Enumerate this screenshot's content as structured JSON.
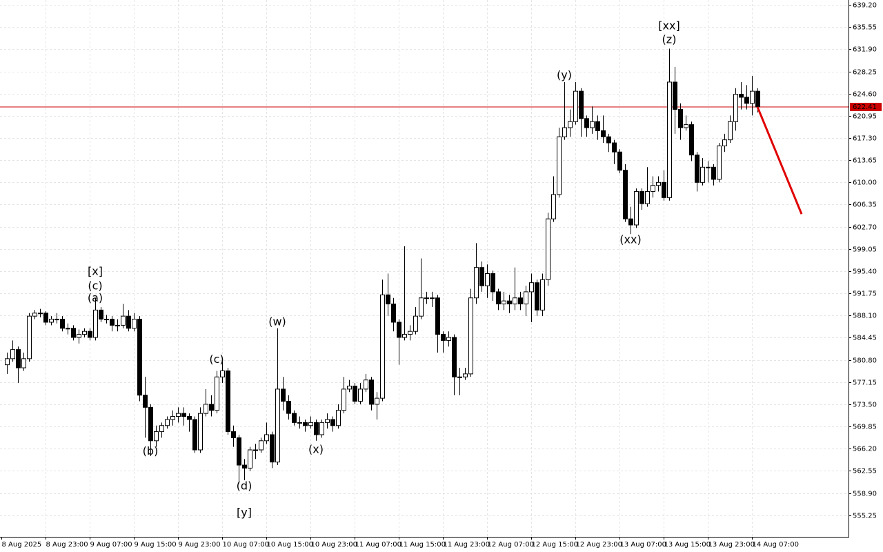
{
  "chart_data": {
    "type": "candlestick",
    "up_color": "#ffffff",
    "down_color": "#000000",
    "grid": true,
    "ylim": [
      551.7,
      640.0
    ],
    "yticks": [
      {
        "value": 639.2,
        "label": "639.20"
      },
      {
        "value": 635.55,
        "label": "635.55"
      },
      {
        "value": 631.9,
        "label": "631.90"
      },
      {
        "value": 628.25,
        "label": "628.25"
      },
      {
        "value": 624.6,
        "label": "624.60"
      },
      {
        "value": 620.95,
        "label": "620.95"
      },
      {
        "value": 617.3,
        "label": "617.30"
      },
      {
        "value": 613.65,
        "label": "613.65"
      },
      {
        "value": 610.0,
        "label": "610.00"
      },
      {
        "value": 606.35,
        "label": "606.35"
      },
      {
        "value": 602.7,
        "label": "602.70"
      },
      {
        "value": 599.05,
        "label": "599.05"
      },
      {
        "value": 595.4,
        "label": "595.40"
      },
      {
        "value": 591.75,
        "label": "591.75"
      },
      {
        "value": 588.1,
        "label": "588.10"
      },
      {
        "value": 584.45,
        "label": "584.45"
      },
      {
        "value": 580.8,
        "label": "580.80"
      },
      {
        "value": 577.15,
        "label": "577.15"
      },
      {
        "value": 573.5,
        "label": "573.50"
      },
      {
        "value": 569.85,
        "label": "569.85"
      },
      {
        "value": 566.2,
        "label": "566.20"
      },
      {
        "value": 562.55,
        "label": "562.55"
      },
      {
        "value": 558.9,
        "label": "558.90"
      },
      {
        "value": 555.25,
        "label": "555.25"
      }
    ],
    "xticks": [
      {
        "value": 0,
        "label": "8 Aug 2025"
      },
      {
        "value": 8,
        "label": "8 Aug 23:00"
      },
      {
        "value": 16,
        "label": "9 Aug 07:00"
      },
      {
        "value": 24,
        "label": "9 Aug 15:00"
      },
      {
        "value": 32,
        "label": "9 Aug 23:00"
      },
      {
        "value": 40,
        "label": "10 Aug 07:00"
      },
      {
        "value": 48,
        "label": "10 Aug 15:00"
      },
      {
        "value": 56,
        "label": "10 Aug 23:00"
      },
      {
        "value": 64,
        "label": "11 Aug 07:00"
      },
      {
        "value": 72,
        "label": "11 Aug 15:00"
      },
      {
        "value": 80,
        "label": "11 Aug 23:00"
      },
      {
        "value": 88,
        "label": "12 Aug 07:00"
      },
      {
        "value": 96,
        "label": "12 Aug 15:00"
      },
      {
        "value": 104,
        "label": "12 Aug 23:00"
      },
      {
        "value": 112,
        "label": "13 Aug 07:00"
      },
      {
        "value": 120,
        "label": "13 Aug 15:00"
      },
      {
        "value": 128,
        "label": "13 Aug 23:00"
      },
      {
        "value": 136,
        "label": "14 Aug 07:00"
      }
    ],
    "open": [
      580,
      581,
      582.5,
      579.5,
      581,
      588,
      588.5,
      588.5,
      587,
      587.5,
      587.5,
      586,
      586,
      584.5,
      585,
      585.5,
      584.5,
      589,
      587.5,
      587.5,
      586.5,
      586.5,
      588,
      586,
      587.5,
      575,
      573,
      567.5,
      569,
      570,
      571,
      571.5,
      572,
      571.5,
      571,
      566,
      572,
      573.5,
      572.5,
      578,
      579,
      569,
      568,
      563.5,
      563,
      566,
      566,
      567.5,
      568.5,
      564,
      576,
      574,
      572,
      570.5,
      570.5,
      570,
      570.5,
      568.5,
      570.5,
      571,
      570,
      572.5,
      576,
      576.5,
      574,
      576,
      577.5,
      573.5,
      574.5,
      591.5,
      590,
      587,
      584.5,
      585,
      585.5,
      588,
      591,
      591,
      591,
      585,
      584,
      584.5,
      578,
      578,
      578.5,
      591,
      596,
      593,
      595,
      592,
      590,
      590.5,
      590,
      591,
      590,
      592,
      593.5,
      589,
      594,
      604,
      608,
      617.5,
      619,
      620,
      625,
      620.5,
      619,
      620,
      618.5,
      617.5,
      616.5,
      615,
      612,
      604,
      603,
      608.5,
      606.5,
      608.5,
      609.5,
      610,
      607.5,
      626.5,
      622,
      619,
      619.5,
      614.5,
      610,
      612.5,
      612.5,
      610.5,
      616,
      617,
      620,
      624.5,
      624,
      623,
      625
    ],
    "high": [
      582,
      584,
      583,
      582,
      588.5,
      589,
      589.2,
      588.8,
      588,
      588.5,
      588,
      586.8,
      586.5,
      585.8,
      586,
      586,
      591,
      589.5,
      588.2,
      588,
      587.5,
      590,
      589,
      588.5,
      588,
      578,
      573.5,
      570,
      570.5,
      571.5,
      572.5,
      573,
      573,
      572,
      571.5,
      573,
      576,
      575,
      579,
      580.5,
      579.5,
      570,
      568.5,
      564.5,
      566.5,
      567,
      568,
      570.5,
      569,
      586,
      578,
      575,
      572.5,
      571.5,
      571,
      571.5,
      571,
      571,
      572,
      571.5,
      573.5,
      578,
      577.5,
      577,
      577,
      578.5,
      578,
      575.5,
      594,
      595,
      591,
      587.5,
      599.5,
      586.5,
      589.5,
      597.5,
      592,
      592,
      591.5,
      585.5,
      585.5,
      585,
      579.5,
      579.5,
      592.5,
      600,
      597,
      596.5,
      595.5,
      592.5,
      592,
      591.5,
      596,
      592,
      593,
      595,
      594,
      595,
      605,
      611,
      619,
      626.5,
      622,
      626.5,
      625.5,
      621,
      622.5,
      621,
      621,
      618,
      617,
      615.5,
      613,
      606,
      609,
      609,
      612.5,
      611,
      611,
      612,
      632,
      629,
      623,
      621,
      620,
      615,
      614,
      613.5,
      613,
      616.5,
      618,
      621,
      625.5,
      626.5,
      626,
      627.5,
      625.5
    ],
    "low": [
      578.5,
      580.5,
      577,
      579,
      580.5,
      587.5,
      587.8,
      586.5,
      586.5,
      586.8,
      585.5,
      585,
      584,
      583.5,
      584.5,
      584,
      584,
      587,
      586.8,
      585.5,
      585.5,
      586,
      585.5,
      585.5,
      574,
      568,
      565,
      566.5,
      568,
      569.5,
      570,
      570.5,
      570,
      569,
      565.5,
      565.5,
      571.5,
      571.5,
      572,
      577,
      568.5,
      566.5,
      560.5,
      561,
      562.5,
      564.5,
      565.5,
      567,
      563,
      563.5,
      572.5,
      571,
      570,
      569.5,
      569,
      569.5,
      567.5,
      568,
      569.5,
      569,
      569.5,
      572,
      575.5,
      573.5,
      573.5,
      575.5,
      572.5,
      571,
      574,
      588,
      585.5,
      580,
      584,
      584,
      585,
      587.5,
      590,
      589.5,
      582,
      582,
      583,
      575,
      575,
      577.5,
      578,
      590,
      592,
      591,
      590.5,
      589,
      589,
      588.5,
      589,
      589,
      588,
      587,
      588,
      588,
      593,
      603.5,
      607.5,
      617,
      617.5,
      619.5,
      617.5,
      617.5,
      618,
      617,
      616.5,
      615,
      613,
      611.5,
      603.5,
      601.5,
      602.5,
      605.5,
      606,
      607.5,
      608.5,
      607,
      607,
      618,
      617,
      618.5,
      613.5,
      608.5,
      609.5,
      610,
      609.5,
      610,
      615,
      616.5,
      618.5,
      622,
      622,
      621,
      621.5
    ],
    "close": [
      581,
      582.5,
      579.5,
      581,
      588,
      588.5,
      588.5,
      587,
      587.5,
      587.5,
      586,
      586,
      584.5,
      585,
      585.5,
      584.5,
      589,
      587.5,
      587.5,
      586.5,
      586.5,
      588,
      586,
      587.5,
      575,
      573,
      567.5,
      569,
      570,
      571,
      571.5,
      572,
      571.5,
      571,
      566,
      572,
      573.5,
      572.5,
      578,
      579,
      569,
      568,
      563.5,
      563,
      566,
      566,
      567.5,
      568.5,
      564,
      576,
      574,
      572,
      570.5,
      570.5,
      570,
      570.5,
      568.5,
      570.5,
      571,
      570,
      572.5,
      576,
      576.5,
      574,
      576,
      577.5,
      573.5,
      574.5,
      591.5,
      590,
      587,
      584.5,
      585,
      585.5,
      588,
      591,
      591,
      591,
      585,
      584,
      584.5,
      578,
      578,
      578.5,
      591,
      596,
      593,
      595,
      592,
      590,
      590.5,
      590,
      591,
      590,
      592,
      593.5,
      589,
      594,
      604,
      608,
      617.5,
      619,
      620,
      625,
      620.5,
      619,
      620,
      618.5,
      617.5,
      616.5,
      615,
      612,
      604,
      603,
      608.5,
      606.5,
      608.5,
      609.5,
      610,
      607.5,
      626.5,
      622,
      619,
      619.5,
      614.5,
      610,
      612.5,
      612.5,
      610.5,
      616,
      617,
      620,
      624.5,
      624,
      623,
      625,
      622.41
    ],
    "current_price": {
      "value": 622.41,
      "label": "622.41",
      "color": "#cc0000"
    },
    "forecast": {
      "from_index": 136,
      "to_index": 144,
      "values": [
        622.41,
        604.8
      ],
      "color": "#e00000"
    },
    "annotations": [
      {
        "text": "[x]",
        "index": 16,
        "value": 595.3,
        "color": "#33bb33"
      },
      {
        "text": "(c)",
        "index": 16,
        "value": 592.9,
        "color": "#2222cc"
      },
      {
        "text": "(a)",
        "index": 16,
        "value": 590.9,
        "color": "#2222cc"
      },
      {
        "text": "(b)",
        "index": 26,
        "value": 565.7,
        "color": "#2222cc"
      },
      {
        "text": "(c)",
        "index": 38,
        "value": 580.8,
        "color": "#2222cc"
      },
      {
        "text": "(d)",
        "index": 43,
        "value": 560.0,
        "color": "#2222cc"
      },
      {
        "text": "[y]",
        "index": 43,
        "value": 555.6,
        "color": "#33bb33"
      },
      {
        "text": "(w)",
        "index": 49,
        "value": 587.0,
        "color": "#2222cc"
      },
      {
        "text": "(x)",
        "index": 56,
        "value": 566.0,
        "color": "#2222cc"
      },
      {
        "text": "(y)",
        "index": 101,
        "value": 627.6,
        "color": "#2222cc"
      },
      {
        "text": "(xx)",
        "index": 113,
        "value": 600.5,
        "color": "#2222cc"
      },
      {
        "text": "[xx]",
        "index": 120,
        "value": 635.7,
        "color": "#33bb33"
      },
      {
        "text": "(z)",
        "index": 120,
        "value": 633.4,
        "color": "#2222cc"
      }
    ]
  }
}
